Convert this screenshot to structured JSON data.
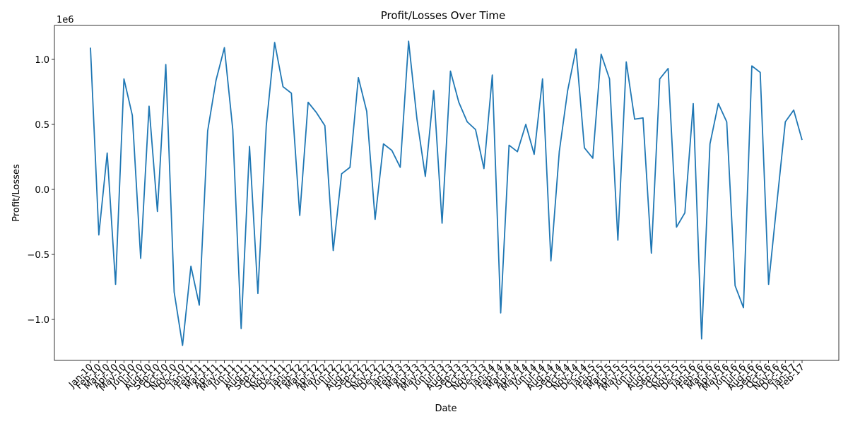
{
  "chart_data": {
    "type": "line",
    "title": "Profit/Losses Over Time",
    "x_label": "Date",
    "y_label": "Profit/Losses",
    "y_offset_label": "1e6",
    "categories": [
      "Jan-10",
      "Feb-10",
      "Mar-10",
      "Apr-10",
      "May-10",
      "Jun-10",
      "Jul-10",
      "Aug-10",
      "Sep-10",
      "Oct-10",
      "Nov-10",
      "Dec-10",
      "Jan-11",
      "Feb-11",
      "Mar-11",
      "Apr-11",
      "May-11",
      "Jun-11",
      "Jul-11",
      "Aug-11",
      "Sep-11",
      "Oct-11",
      "Nov-11",
      "Dec-11",
      "Jan-12",
      "Feb-12",
      "Mar-12",
      "Apr-12",
      "May-12",
      "Jun-12",
      "Jul-12",
      "Aug-12",
      "Sep-12",
      "Oct-12",
      "Nov-12",
      "Dec-12",
      "Jan-13",
      "Feb-13",
      "Mar-13",
      "Apr-13",
      "May-13",
      "Jun-13",
      "Jul-13",
      "Aug-13",
      "Sep-13",
      "Oct-13",
      "Nov-13",
      "Dec-13",
      "Jan-14",
      "Feb-14",
      "Mar-14",
      "Apr-14",
      "May-14",
      "Jun-14",
      "Jul-14",
      "Aug-14",
      "Sep-14",
      "Oct-14",
      "Nov-14",
      "Dec-14",
      "Jan-15",
      "Feb-15",
      "Mar-15",
      "Apr-15",
      "May-15",
      "Jun-15",
      "Jul-15",
      "Aug-15",
      "Sep-15",
      "Oct-15",
      "Nov-15",
      "Dec-15",
      "Jan-16",
      "Feb-16",
      "Mar-16",
      "Apr-16",
      "May-16",
      "Jun-16",
      "Jul-16",
      "Aug-16",
      "Sep-16",
      "Oct-16",
      "Nov-16",
      "Dec-16",
      "Jan-17",
      "Feb-17"
    ],
    "values": [
      1.09,
      -0.35,
      0.28,
      -0.73,
      0.85,
      0.57,
      -0.53,
      0.64,
      -0.17,
      0.96,
      -0.79,
      -1.2,
      -0.59,
      -0.89,
      0.45,
      0.84,
      1.09,
      0.46,
      -1.07,
      0.33,
      -0.8,
      0.49,
      1.13,
      0.79,
      0.74,
      -0.2,
      0.67,
      0.59,
      0.49,
      -0.47,
      0.12,
      0.17,
      0.86,
      0.6,
      -0.23,
      0.35,
      0.3,
      0.17,
      1.14,
      0.54,
      0.1,
      0.76,
      -0.26,
      0.91,
      0.67,
      0.52,
      0.46,
      0.16,
      0.88,
      -0.95,
      0.34,
      0.29,
      0.5,
      0.27,
      0.85,
      -0.55,
      0.29,
      0.76,
      1.08,
      0.32,
      0.24,
      1.04,
      0.85,
      -0.39,
      0.98,
      0.54,
      0.55,
      -0.49,
      0.85,
      0.93,
      -0.29,
      -0.18,
      0.66,
      -1.15,
      0.35,
      0.66,
      0.52,
      -0.74,
      -0.91,
      0.95,
      0.9,
      -0.73,
      -0.1,
      0.52,
      0.61,
      0.38
    ],
    "color": "#1f77b4",
    "ylim": [
      -1.315,
      1.261
    ],
    "yticks": [
      {
        "value": -1,
        "label": "−1.0"
      },
      {
        "value": -0.5,
        "label": "−0.5"
      },
      {
        "value": 0,
        "label": "0.0"
      },
      {
        "value": 0.5,
        "label": "0.5"
      },
      {
        "value": 1,
        "label": "1.0"
      }
    ],
    "grid": false
  }
}
